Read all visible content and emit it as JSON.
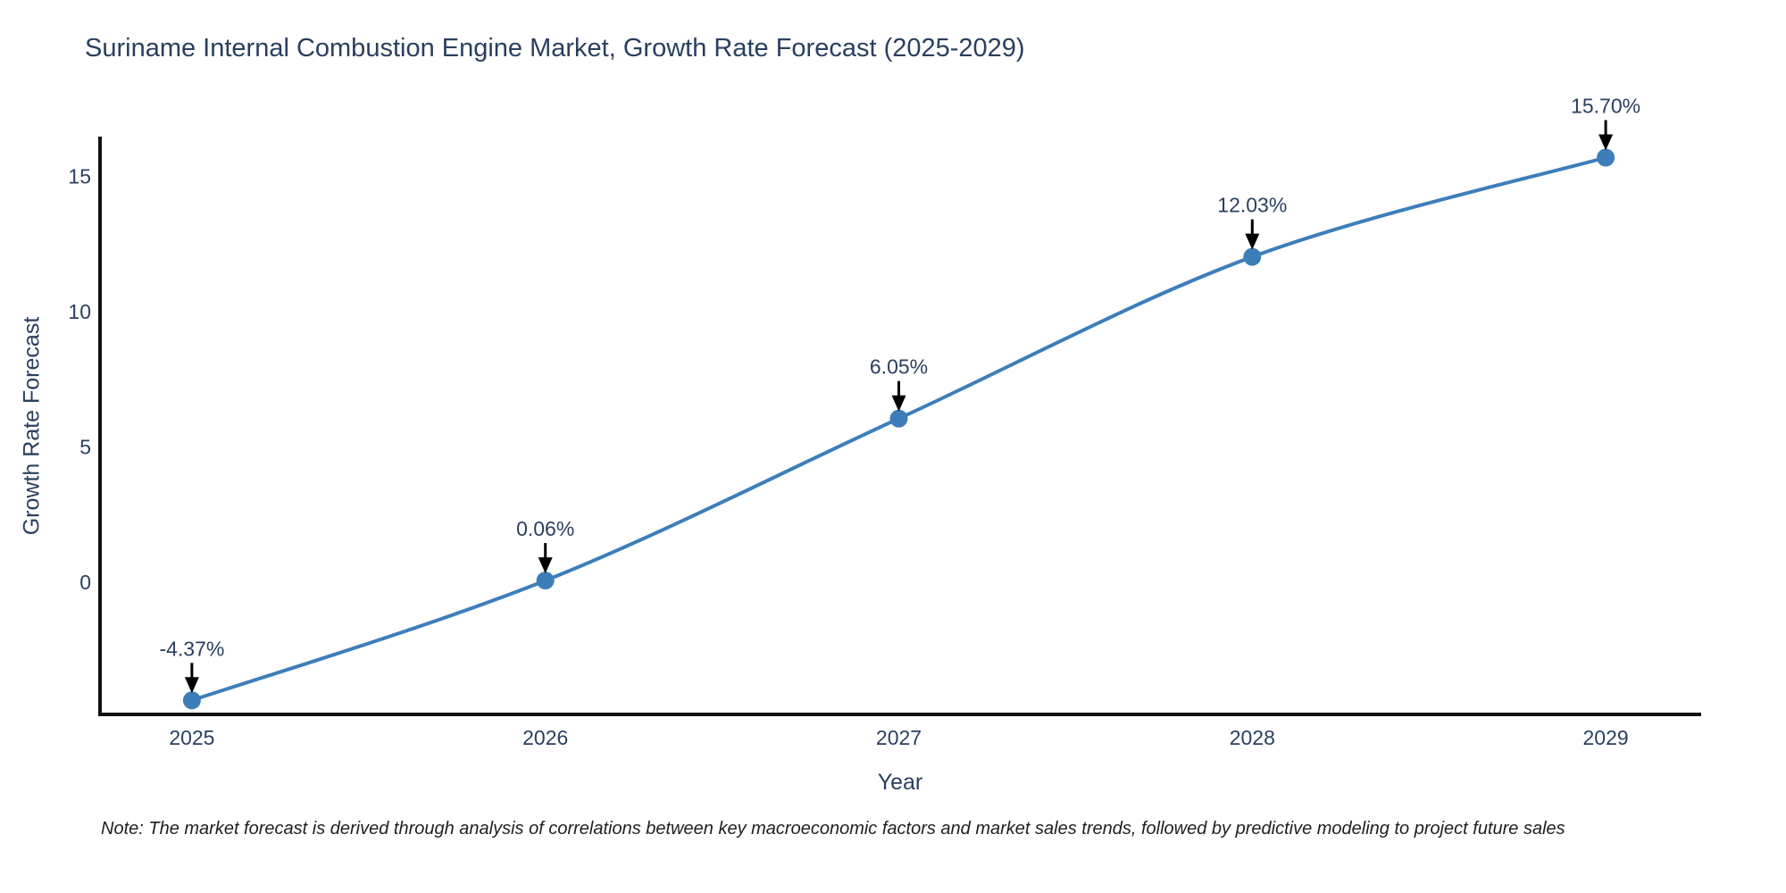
{
  "note": "Note: The market forecast is derived through analysis of correlations between key macroeconomic factors and market sales trends, followed by predictive modeling to project future sales",
  "chart_data": {
    "type": "line",
    "title": "Suriname Internal Combustion Engine Market, Growth Rate Forecast (2025-2029)",
    "xlabel": "Year",
    "ylabel": "Growth Rate Forecast",
    "x": [
      2025,
      2026,
      2027,
      2028,
      2029
    ],
    "values": [
      -4.37,
      0.06,
      6.05,
      12.03,
      15.7
    ],
    "point_labels": [
      "-4.37%",
      "0.06%",
      "6.05%",
      "12.03%",
      "15.70%"
    ],
    "xticks": [
      "2025",
      "2026",
      "2027",
      "2028",
      "2029"
    ],
    "yticks": [
      0,
      5,
      10,
      15
    ],
    "xlim": [
      2024.74,
      2029.27
    ],
    "ylim": [
      -4.89,
      16.41
    ],
    "grid": false,
    "legend": "none",
    "line_shape": "spline",
    "annotation_style": "label-above-with-down-arrow",
    "colors": {
      "line": "#3d7eba",
      "marker": "#3d7eba",
      "annotation_text": "#2a3f5f",
      "arrow": "#000000",
      "axis": "#111111",
      "tick_label": "#2a3f5f",
      "title": "#2a3f5f",
      "note": "#1f1f1f",
      "background": "#ffffff"
    }
  }
}
